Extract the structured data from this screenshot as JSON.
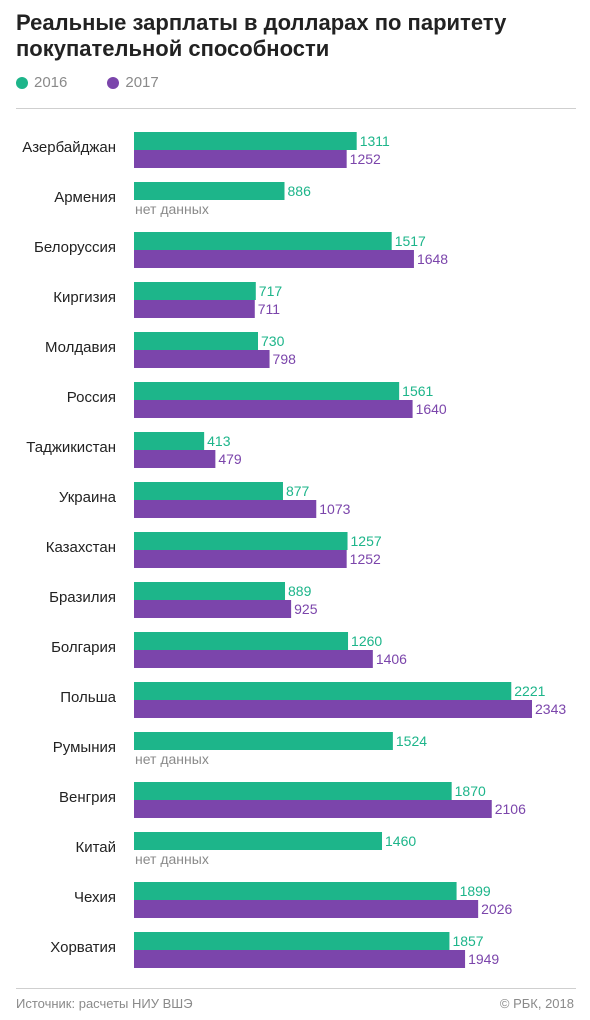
{
  "title": "Реальные зарплаты в долларах по паритету покупательной способности",
  "footer": {
    "source": "Источник: расчеты НИУ ВШЭ",
    "copyright": "© РБК, 2018"
  },
  "colors": {
    "s2016": "#1db58a",
    "s2017": "#7b45ab",
    "label": "#222222",
    "nodata": "#8a8a8a"
  },
  "chart_data": {
    "type": "bar",
    "orientation": "horizontal",
    "title": "Реальные зарплаты в долларах по паритету покупательной способности",
    "legend_position": "top-left",
    "grid": false,
    "no_data_label": "нет данных",
    "categories": [
      "Азербайджан",
      "Армения",
      "Белоруссия",
      "Киргизия",
      "Молдавия",
      "Россия",
      "Таджикистан",
      "Украина",
      "Казахстан",
      "Бразилия",
      "Болгария",
      "Польша",
      "Румыния",
      "Венгрия",
      "Китай",
      "Чехия",
      "Хорватия"
    ],
    "series": [
      {
        "name": "2016",
        "values": [
          1311,
          886,
          1517,
          717,
          730,
          1561,
          413,
          877,
          1257,
          889,
          1260,
          2221,
          1524,
          1870,
          1460,
          1899,
          1857
        ]
      },
      {
        "name": "2017",
        "values": [
          1252,
          null,
          1648,
          711,
          798,
          1640,
          479,
          1073,
          1252,
          925,
          1406,
          2343,
          null,
          2106,
          null,
          2026,
          1949
        ]
      }
    ],
    "xlim": [
      0,
      2343
    ]
  }
}
